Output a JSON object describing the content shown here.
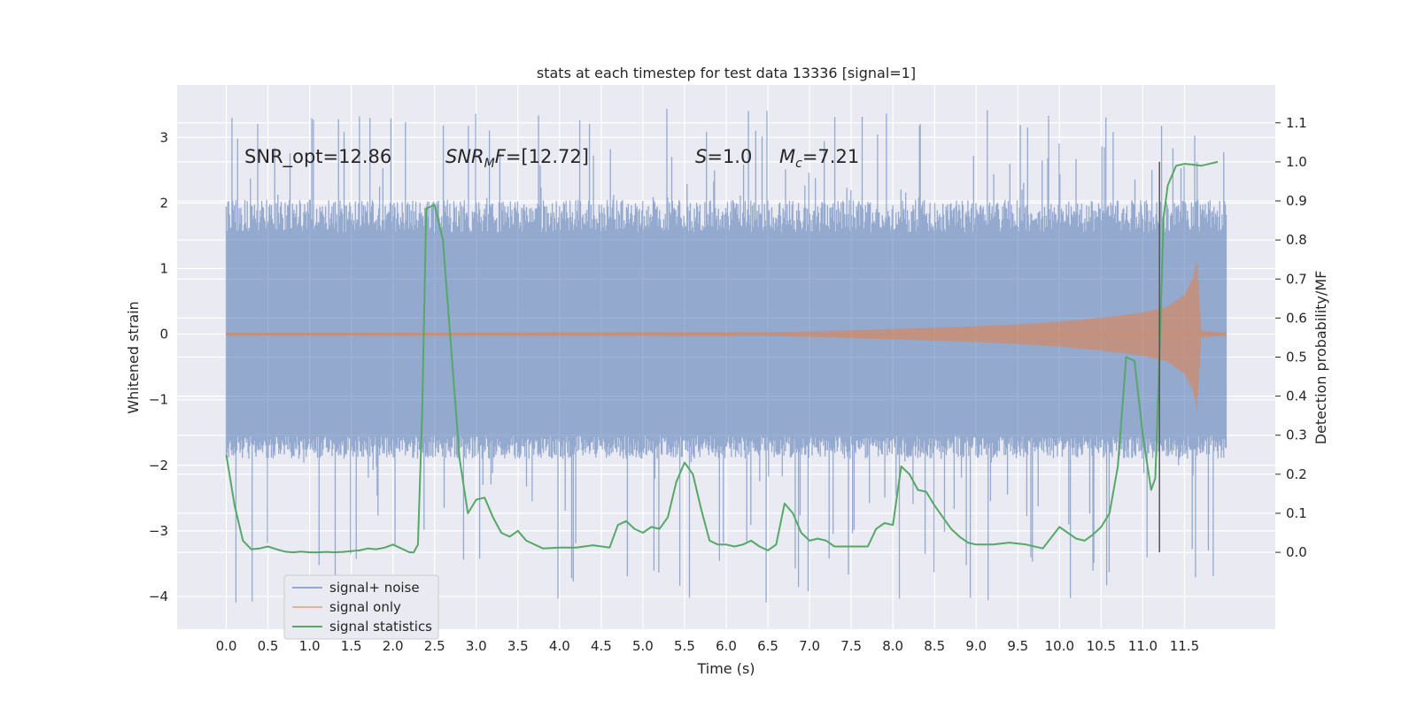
{
  "chart_data": {
    "type": "line",
    "title": "stats at each timestep for test data 13336 [signal=1]",
    "xlabel": "Time (s)",
    "ylabel_left": "Whitened strain",
    "ylabel_right": "Detection probability/MF",
    "xlim": [
      -0.59,
      12.59
    ],
    "ylim_left": [
      -4.5,
      3.8
    ],
    "ylim_right": [
      -0.197,
      1.197
    ],
    "x_ticks": [
      "0.0",
      "0.5",
      "1.0",
      "1.5",
      "2.0",
      "2.5",
      "3.0",
      "3.5",
      "4.0",
      "4.5",
      "5.0",
      "5.5",
      "6.0",
      "6.5",
      "7.0",
      "7.5",
      "8.0",
      "8.5",
      "9.0",
      "9.5",
      "10.0",
      "10.5",
      "11.0",
      "11.5"
    ],
    "y_ticks_left": [
      "−4",
      "−3",
      "−2",
      "−1",
      "0",
      "1",
      "2",
      "3"
    ],
    "y_ticks_right": [
      "0.0",
      "0.1",
      "0.2",
      "0.3",
      "0.4",
      "0.5",
      "0.6",
      "0.7",
      "0.8",
      "0.9",
      "1.0",
      "1.1"
    ],
    "grid": true,
    "legend_position": "bottom-left",
    "annotations": {
      "snr_opt": "SNR_opt=12.86",
      "snr_mf_base": "SNR",
      "snr_mf_sub": "M",
      "snr_mf_rest": "F=[12.72]",
      "s_base": "S",
      "s_rest": "=1.0",
      "mc_base": "M",
      "mc_sub": "c",
      "mc_rest": "=7.21"
    },
    "vline_x": 11.2,
    "series": [
      {
        "name": "signal+ noise",
        "color": "#4c72b0",
        "axis": "left",
        "x_range": [
          0.0,
          12.0
        ],
        "band_lower": -1.55,
        "band_upper": 2.05,
        "extreme_min": -4.1,
        "extreme_max": 3.45
      },
      {
        "name": "signal only",
        "color": "#dd8452",
        "axis": "left",
        "envelope": {
          "x": [
            0.0,
            6.5,
            7.0,
            7.5,
            8.0,
            8.5,
            9.0,
            9.5,
            10.0,
            10.5,
            11.0,
            11.3,
            11.5,
            11.6,
            11.65,
            11.7,
            12.0
          ],
          "amp": [
            0.02,
            0.03,
            0.04,
            0.06,
            0.08,
            0.1,
            0.12,
            0.15,
            0.19,
            0.25,
            0.33,
            0.42,
            0.6,
            0.85,
            1.15,
            0.05,
            0.02
          ]
        }
      },
      {
        "name": "signal statistics",
        "color": "#55a868",
        "axis": "right",
        "x": [
          0.0,
          0.1,
          0.2,
          0.3,
          0.4,
          0.5,
          0.6,
          0.7,
          0.8,
          0.9,
          1.0,
          1.1,
          1.2,
          1.3,
          1.4,
          1.5,
          1.6,
          1.7,
          1.8,
          1.9,
          2.0,
          2.1,
          2.2,
          2.25,
          2.3,
          2.35,
          2.4,
          2.5,
          2.6,
          2.7,
          2.8,
          2.9,
          3.0,
          3.1,
          3.2,
          3.3,
          3.4,
          3.5,
          3.6,
          3.8,
          4.0,
          4.2,
          4.4,
          4.6,
          4.7,
          4.8,
          4.9,
          5.0,
          5.1,
          5.2,
          5.3,
          5.4,
          5.5,
          5.6,
          5.7,
          5.8,
          5.9,
          6.0,
          6.1,
          6.2,
          6.3,
          6.4,
          6.5,
          6.6,
          6.7,
          6.8,
          6.9,
          7.0,
          7.1,
          7.2,
          7.3,
          7.5,
          7.7,
          7.8,
          7.9,
          8.0,
          8.1,
          8.2,
          8.3,
          8.4,
          8.5,
          8.6,
          8.7,
          8.8,
          8.9,
          9.0,
          9.2,
          9.4,
          9.6,
          9.8,
          10.0,
          10.1,
          10.2,
          10.3,
          10.4,
          10.5,
          10.6,
          10.7,
          10.8,
          10.9,
          11.0,
          11.1,
          11.15,
          11.2,
          11.25,
          11.3,
          11.4,
          11.5,
          11.6,
          11.7,
          11.9
        ],
        "y": [
          0.25,
          0.12,
          0.03,
          0.008,
          0.01,
          0.015,
          0.008,
          0.002,
          0.0,
          0.002,
          0.0,
          0.0,
          0.001,
          0.0,
          0.001,
          0.003,
          0.005,
          0.01,
          0.008,
          0.012,
          0.02,
          0.01,
          0.0,
          0.0,
          0.02,
          0.35,
          0.88,
          0.89,
          0.8,
          0.52,
          0.24,
          0.1,
          0.135,
          0.14,
          0.09,
          0.05,
          0.04,
          0.055,
          0.03,
          0.01,
          0.012,
          0.012,
          0.018,
          0.012,
          0.07,
          0.08,
          0.06,
          0.05,
          0.065,
          0.06,
          0.09,
          0.18,
          0.23,
          0.2,
          0.11,
          0.03,
          0.02,
          0.02,
          0.015,
          0.02,
          0.03,
          0.015,
          0.005,
          0.02,
          0.125,
          0.1,
          0.05,
          0.03,
          0.035,
          0.03,
          0.015,
          0.015,
          0.015,
          0.06,
          0.075,
          0.07,
          0.22,
          0.2,
          0.16,
          0.155,
          0.12,
          0.09,
          0.06,
          0.04,
          0.025,
          0.02,
          0.02,
          0.025,
          0.02,
          0.01,
          0.065,
          0.05,
          0.035,
          0.03,
          0.045,
          0.065,
          0.1,
          0.22,
          0.5,
          0.49,
          0.3,
          0.16,
          0.19,
          0.5,
          0.86,
          0.94,
          0.99,
          0.995,
          0.993,
          0.99,
          1.0
        ]
      }
    ]
  }
}
